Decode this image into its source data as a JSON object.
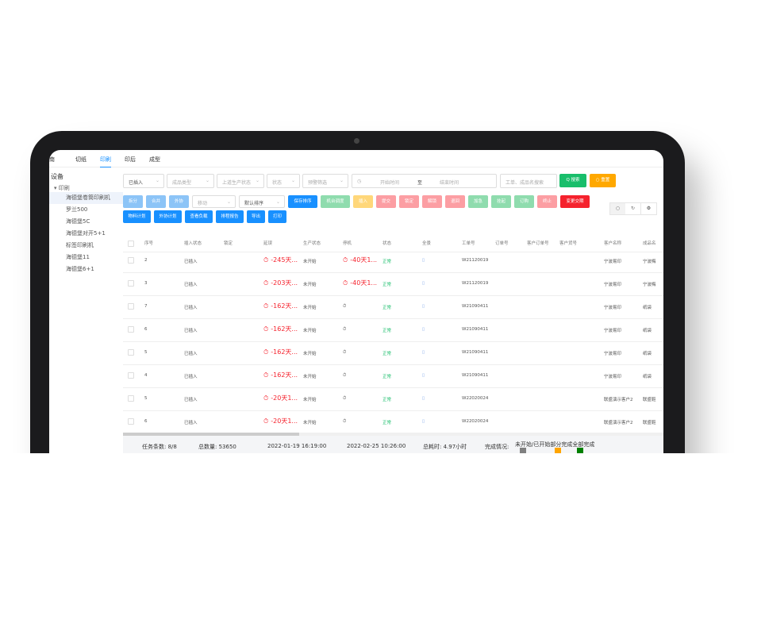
{
  "tabs": [
    "南",
    "切纸",
    "印刷",
    "印后",
    "成型"
  ],
  "active_tab": "印刷",
  "sidebar": {
    "title": "设备",
    "group": "印刷",
    "items": [
      "海德堡卷筒印刷机",
      "罗兰500",
      "海德堡5C",
      "海德堡对开5+1",
      "标签印刷机",
      "海德堡11",
      "海德堡6+1"
    ],
    "selected": "海德堡卷筒印刷机"
  },
  "filters": {
    "insert": "已插入",
    "product_type": "成品类型",
    "upstream": "上道生产状态",
    "status": "状态",
    "warning": "预警筛选",
    "start": "开始时间",
    "to": "至",
    "end": "结束时间",
    "search": "工单、成品名搜索",
    "search_btn": "Q 搜索",
    "reset_btn": "○ 重置",
    "move": "移动",
    "sort": "默认排序"
  },
  "buttons1": [
    {
      "l": "拆分",
      "c": "#8cc4f7"
    },
    {
      "l": "合并",
      "c": "#8cc4f7"
    },
    {
      "l": "外协",
      "c": "#8cc4f7"
    }
  ],
  "buttons2": [
    {
      "l": "保存排序",
      "c": "#1890ff"
    },
    {
      "l": "机台调度",
      "c": "#8fdcae"
    },
    {
      "l": "插入",
      "c": "#ffd77a"
    },
    {
      "l": "提交",
      "c": "#fc9ea3"
    },
    {
      "l": "锁定",
      "c": "#fc9ea3"
    },
    {
      "l": "解锁",
      "c": "#fc9ea3"
    },
    {
      "l": "退回",
      "c": "#fc9ea3"
    },
    {
      "l": "加急",
      "c": "#8fdcae"
    },
    {
      "l": "挂起",
      "c": "#8fdcae"
    },
    {
      "l": "订购",
      "c": "#8fdcae"
    },
    {
      "l": "终止",
      "c": "#fc9ea3"
    },
    {
      "l": "变更交期",
      "c": "#f5222d"
    }
  ],
  "buttons3": [
    "物料计划",
    "外协计划",
    "查看负载",
    "排程报告",
    "导出",
    "打印"
  ],
  "columns": [
    "序号",
    "插入状态",
    "锁定",
    "延误",
    "生产状态",
    "停机",
    "状态",
    "全景",
    "工单号",
    "订单号",
    "客户订单号",
    "客户货号",
    "客户名称",
    "成品名"
  ],
  "rows": [
    [
      "2",
      "已插入",
      "",
      "-245天...",
      "未开始",
      "-40天1...",
      "正常",
      "W21120019",
      "宁波易印",
      "宁波梅"
    ],
    [
      "3",
      "已插入",
      "",
      "-203天...",
      "未开始",
      "-40天1...",
      "正常",
      "W21120019",
      "宁波易印",
      "宁波梅"
    ],
    [
      "7",
      "已插入",
      "",
      "-162天...",
      "未开始",
      "",
      "正常",
      "W21090411",
      "宁波易印",
      "纸袋"
    ],
    [
      "6",
      "已插入",
      "",
      "-162天...",
      "未开始",
      "",
      "正常",
      "W21090411",
      "宁波易印",
      "纸袋"
    ],
    [
      "5",
      "已插入",
      "",
      "-162天...",
      "未开始",
      "",
      "正常",
      "W21090411",
      "宁波易印",
      "纸袋"
    ],
    [
      "4",
      "已插入",
      "",
      "-162天...",
      "未开始",
      "",
      "正常",
      "W21090411",
      "宁波易印",
      "纸袋"
    ],
    [
      "5",
      "已插入",
      "",
      "-20天1...",
      "未开始",
      "",
      "正常",
      "W22020024",
      "联盛演示客户2",
      "联盛鞋"
    ],
    [
      "6",
      "已插入",
      "",
      "-20天1...",
      "未开始",
      "",
      "正常",
      "W22020024",
      "联盛演示客户2",
      "联盛鞋"
    ]
  ],
  "footer": {
    "tasks": "任务条数:  8/8",
    "total": "总数量:  53650",
    "start": "2022-01-19 16:19:00",
    "end": "2022-02-25 10:26:00",
    "hours": "总耗时:  4.97小时",
    "legend_title": "完成情况:",
    "legend": [
      {
        "l": "未开始/已开始",
        "c": "#808080"
      },
      {
        "l": "部分完成",
        "c": "#ffa500"
      },
      {
        "l": "全部完成",
        "c": "#008000"
      }
    ]
  }
}
